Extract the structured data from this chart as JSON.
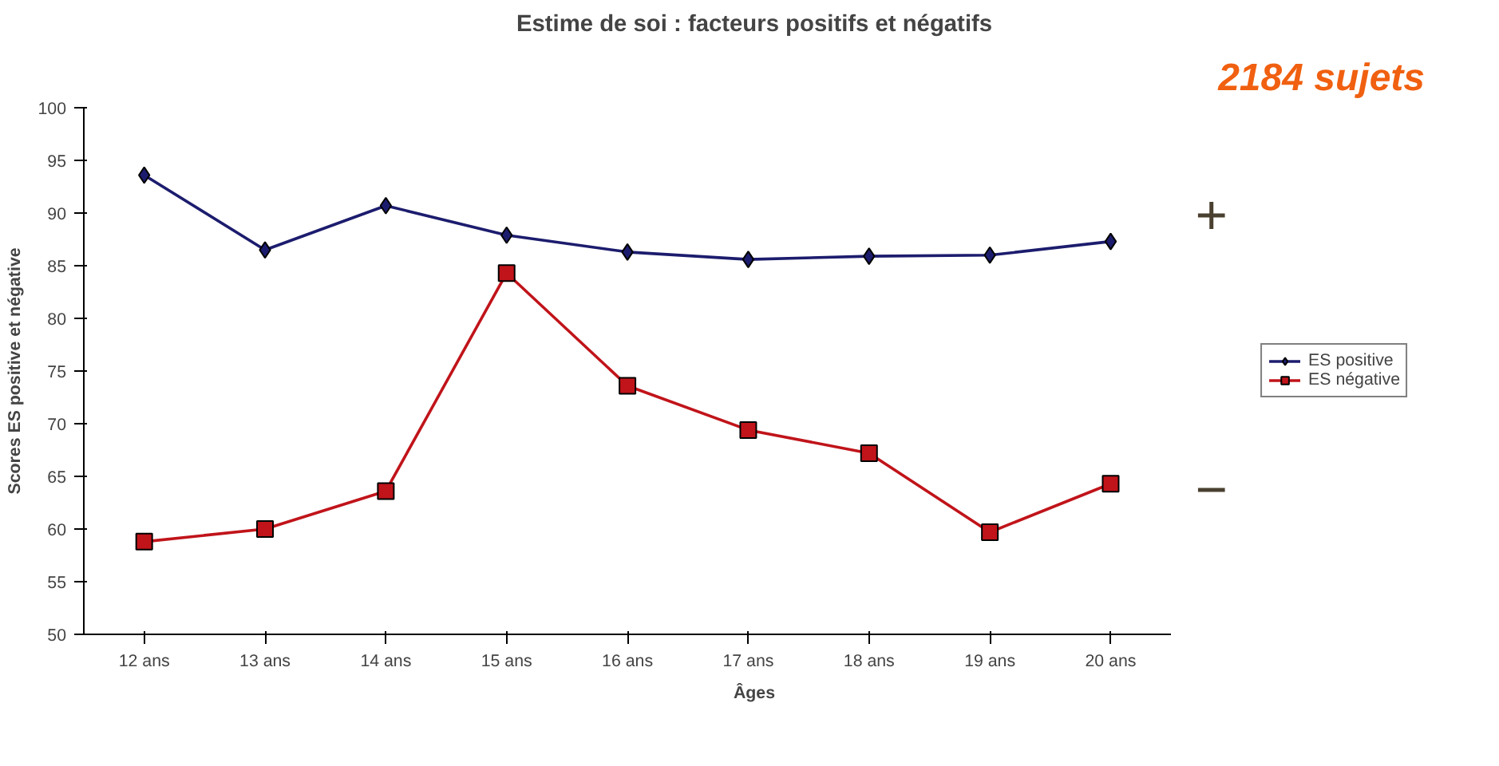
{
  "chart_data": {
    "type": "line",
    "title": "Estime de soi : facteurs positifs et négatifs",
    "xlabel": "Âges",
    "ylabel": "Scores ES positive et négative",
    "categories": [
      "12 ans",
      "13 ans",
      "14 ans",
      "15 ans",
      "16 ans",
      "17 ans",
      "18 ans",
      "19 ans",
      "20 ans"
    ],
    "series": [
      {
        "name": "ES positive",
        "color": "#1c1c6e",
        "marker": "diamond",
        "values": [
          93.6,
          86.5,
          90.7,
          87.9,
          86.3,
          85.6,
          85.9,
          86.0,
          87.3
        ]
      },
      {
        "name": "ES négative",
        "color": "#c0141a",
        "marker": "square",
        "values": [
          58.8,
          60.0,
          63.6,
          84.3,
          73.6,
          69.4,
          67.2,
          59.7,
          64.3
        ]
      }
    ],
    "ylim": [
      50,
      100
    ],
    "yticks": [
      50,
      55,
      60,
      65,
      70,
      75,
      80,
      85,
      90,
      95,
      100
    ],
    "grid": false,
    "legend": "right",
    "line_style": "solid",
    "annotations": [
      "2184 sujets",
      "+",
      "−"
    ]
  }
}
